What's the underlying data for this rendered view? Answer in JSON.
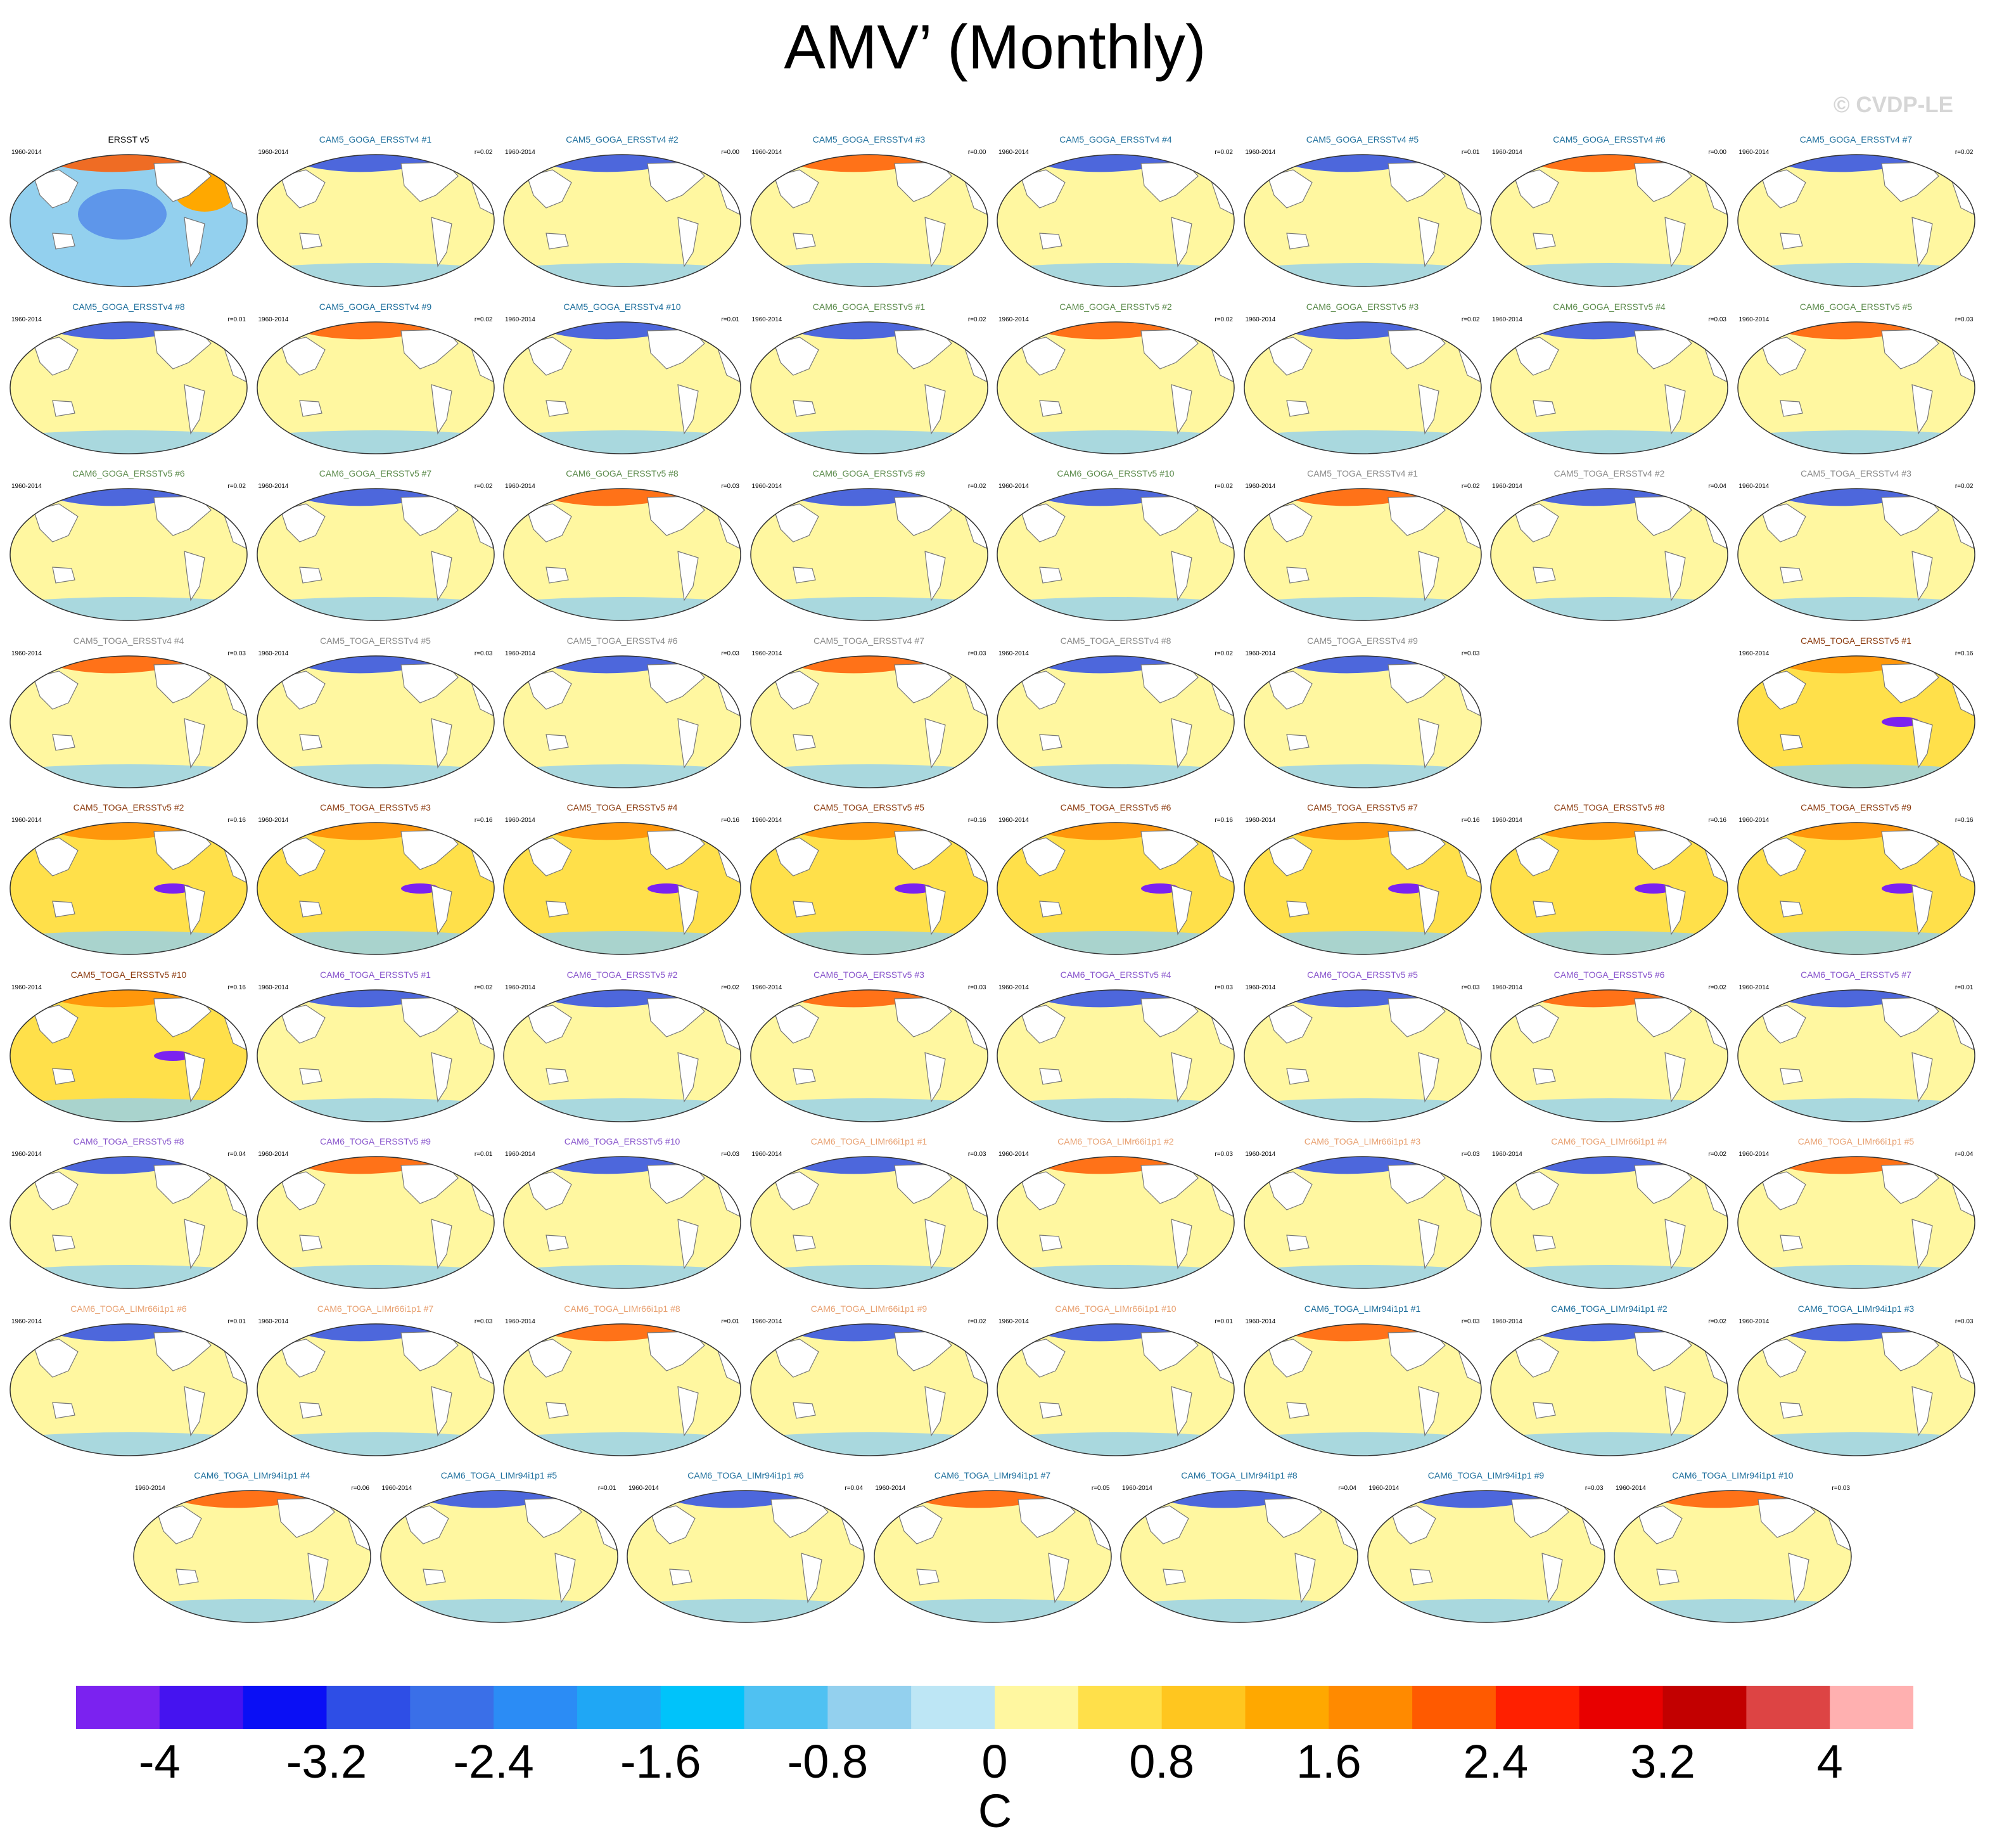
{
  "page": {
    "title": "AMV’ (Monthly)",
    "watermark": "© CVDP-LE"
  },
  "chart_data": {
    "type": "heatmap",
    "title": "AMV’ (Monthly)",
    "units": "C",
    "colorbar": {
      "ticks": [
        "-4",
        "-3.2",
        "-2.4",
        "-1.6",
        "-0.8",
        "0",
        "0.8",
        "1.6",
        "2.4",
        "3.2",
        "4"
      ],
      "range": [
        -4.4,
        4.4
      ],
      "colors": [
        "#7b22f0",
        "#4513f0",
        "#0a0ff5",
        "#2e4ee6",
        "#3a6fe8",
        "#2b8cf5",
        "#1fa7f5",
        "#00c3fa",
        "#4fc1f2",
        "#93d0ee",
        "#bde6f5",
        "#fff7a0",
        "#ffe04a",
        "#ffc61f",
        "#ffa800",
        "#ff8a00",
        "#ff5a00",
        "#ff2000",
        "#e80000",
        "#c20000",
        "#dd4444",
        "#ffb0b0"
      ]
    },
    "panels": [
      {
        "name": "ERSST v5",
        "years": "1960-2014",
        "r": "",
        "group": "obs"
      },
      {
        "name": "CAM5_GOGA_ERSSTv4 #1",
        "years": "1960-2014",
        "r": "r=0.02",
        "group": "cam5_goga"
      },
      {
        "name": "CAM5_GOGA_ERSSTv4 #2",
        "years": "1960-2014",
        "r": "r=0.00",
        "group": "cam5_goga"
      },
      {
        "name": "CAM5_GOGA_ERSSTv4 #3",
        "years": "1960-2014",
        "r": "r=0.00",
        "group": "cam5_goga"
      },
      {
        "name": "CAM5_GOGA_ERSSTv4 #4",
        "years": "1960-2014",
        "r": "r=0.02",
        "group": "cam5_goga"
      },
      {
        "name": "CAM5_GOGA_ERSSTv4 #5",
        "years": "1960-2014",
        "r": "r=0.01",
        "group": "cam5_goga"
      },
      {
        "name": "CAM5_GOGA_ERSSTv4 #6",
        "years": "1960-2014",
        "r": "r=0.00",
        "group": "cam5_goga"
      },
      {
        "name": "CAM5_GOGA_ERSSTv4 #7",
        "years": "1960-2014",
        "r": "r=0.02",
        "group": "cam5_goga"
      },
      {
        "name": "CAM5_GOGA_ERSSTv4 #8",
        "years": "1960-2014",
        "r": "r=0.01",
        "group": "cam5_goga"
      },
      {
        "name": "CAM5_GOGA_ERSSTv4 #9",
        "years": "1960-2014",
        "r": "r=0.02",
        "group": "cam5_goga"
      },
      {
        "name": "CAM5_GOGA_ERSSTv4 #10",
        "years": "1960-2014",
        "r": "r=0.01",
        "group": "cam5_goga"
      },
      {
        "name": "CAM6_GOGA_ERSSTv5 #1",
        "years": "1960-2014",
        "r": "r=0.02",
        "group": "cam6_goga"
      },
      {
        "name": "CAM6_GOGA_ERSSTv5 #2",
        "years": "1960-2014",
        "r": "r=0.02",
        "group": "cam6_goga"
      },
      {
        "name": "CAM6_GOGA_ERSSTv5 #3",
        "years": "1960-2014",
        "r": "r=0.02",
        "group": "cam6_goga"
      },
      {
        "name": "CAM6_GOGA_ERSSTv5 #4",
        "years": "1960-2014",
        "r": "r=0.03",
        "group": "cam6_goga"
      },
      {
        "name": "CAM6_GOGA_ERSSTv5 #5",
        "years": "1960-2014",
        "r": "r=0.03",
        "group": "cam6_goga"
      },
      {
        "name": "CAM6_GOGA_ERSSTv5 #6",
        "years": "1960-2014",
        "r": "r=0.02",
        "group": "cam6_goga"
      },
      {
        "name": "CAM6_GOGA_ERSSTv5 #7",
        "years": "1960-2014",
        "r": "r=0.02",
        "group": "cam6_goga"
      },
      {
        "name": "CAM6_GOGA_ERSSTv5 #8",
        "years": "1960-2014",
        "r": "r=0.03",
        "group": "cam6_goga"
      },
      {
        "name": "CAM6_GOGA_ERSSTv5 #9",
        "years": "1960-2014",
        "r": "r=0.02",
        "group": "cam6_goga"
      },
      {
        "name": "CAM6_GOGA_ERSSTv5 #10",
        "years": "1960-2014",
        "r": "r=0.02",
        "group": "cam6_goga"
      },
      {
        "name": "CAM5_TOGA_ERSSTv4 #1",
        "years": "1960-2014",
        "r": "r=0.02",
        "group": "cam5_toga4"
      },
      {
        "name": "CAM5_TOGA_ERSSTv4 #2",
        "years": "1960-2014",
        "r": "r=0.04",
        "group": "cam5_toga4"
      },
      {
        "name": "CAM5_TOGA_ERSSTv4 #3",
        "years": "1960-2014",
        "r": "r=0.02",
        "group": "cam5_toga4"
      },
      {
        "name": "CAM5_TOGA_ERSSTv4 #4",
        "years": "1960-2014",
        "r": "r=0.03",
        "group": "cam5_toga4"
      },
      {
        "name": "CAM5_TOGA_ERSSTv4 #5",
        "years": "1960-2014",
        "r": "r=0.03",
        "group": "cam5_toga4"
      },
      {
        "name": "CAM5_TOGA_ERSSTv4 #6",
        "years": "1960-2014",
        "r": "r=0.03",
        "group": "cam5_toga4"
      },
      {
        "name": "CAM5_TOGA_ERSSTv4 #7",
        "years": "1960-2014",
        "r": "r=0.03",
        "group": "cam5_toga4"
      },
      {
        "name": "CAM5_TOGA_ERSSTv4 #8",
        "years": "1960-2014",
        "r": "r=0.02",
        "group": "cam5_toga4"
      },
      {
        "name": "CAM5_TOGA_ERSSTv4 #9",
        "years": "1960-2014",
        "r": "r=0.03",
        "group": "cam5_toga4"
      },
      {
        "name": "CAM5_TOGA_ERSSTv5 #1",
        "years": "1960-2014",
        "r": "r=0.16",
        "group": "cam5_toga5"
      },
      {
        "name": "CAM5_TOGA_ERSSTv5 #2",
        "years": "1960-2014",
        "r": "r=0.16",
        "group": "cam5_toga5"
      },
      {
        "name": "CAM5_TOGA_ERSSTv5 #3",
        "years": "1960-2014",
        "r": "r=0.16",
        "group": "cam5_toga5"
      },
      {
        "name": "CAM5_TOGA_ERSSTv5 #4",
        "years": "1960-2014",
        "r": "r=0.16",
        "group": "cam5_toga5"
      },
      {
        "name": "CAM5_TOGA_ERSSTv5 #5",
        "years": "1960-2014",
        "r": "r=0.16",
        "group": "cam5_toga5"
      },
      {
        "name": "CAM5_TOGA_ERSSTv5 #6",
        "years": "1960-2014",
        "r": "r=0.16",
        "group": "cam5_toga5"
      },
      {
        "name": "CAM5_TOGA_ERSSTv5 #7",
        "years": "1960-2014",
        "r": "r=0.16",
        "group": "cam5_toga5"
      },
      {
        "name": "CAM5_TOGA_ERSSTv5 #8",
        "years": "1960-2014",
        "r": "r=0.16",
        "group": "cam5_toga5"
      },
      {
        "name": "CAM5_TOGA_ERSSTv5 #9",
        "years": "1960-2014",
        "r": "r=0.16",
        "group": "cam5_toga5"
      },
      {
        "name": "CAM5_TOGA_ERSSTv5 #10",
        "years": "1960-2014",
        "r": "r=0.16",
        "group": "cam5_toga5"
      },
      {
        "name": "CAM6_TOGA_ERSSTv5 #1",
        "years": "1960-2014",
        "r": "r=0.02",
        "group": "cam6_toga5"
      },
      {
        "name": "CAM6_TOGA_ERSSTv5 #2",
        "years": "1960-2014",
        "r": "r=0.02",
        "group": "cam6_toga5"
      },
      {
        "name": "CAM6_TOGA_ERSSTv5 #3",
        "years": "1960-2014",
        "r": "r=0.03",
        "group": "cam6_toga5"
      },
      {
        "name": "CAM6_TOGA_ERSSTv5 #4",
        "years": "1960-2014",
        "r": "r=0.03",
        "group": "cam6_toga5"
      },
      {
        "name": "CAM6_TOGA_ERSSTv5 #5",
        "years": "1960-2014",
        "r": "r=0.03",
        "group": "cam6_toga5"
      },
      {
        "name": "CAM6_TOGA_ERSSTv5 #6",
        "years": "1960-2014",
        "r": "r=0.02",
        "group": "cam6_toga5"
      },
      {
        "name": "CAM6_TOGA_ERSSTv5 #7",
        "years": "1960-2014",
        "r": "r=0.01",
        "group": "cam6_toga5"
      },
      {
        "name": "CAM6_TOGA_ERSSTv5 #8",
        "years": "1960-2014",
        "r": "r=0.04",
        "group": "cam6_toga5"
      },
      {
        "name": "CAM6_TOGA_ERSSTv5 #9",
        "years": "1960-2014",
        "r": "r=0.01",
        "group": "cam6_toga5"
      },
      {
        "name": "CAM6_TOGA_ERSSTv5 #10",
        "years": "1960-2014",
        "r": "r=0.03",
        "group": "cam6_toga5"
      },
      {
        "name": "CAM6_TOGA_LIMr66i1p1 #1",
        "years": "1960-2014",
        "r": "r=0.03",
        "group": "cam6_lim66"
      },
      {
        "name": "CAM6_TOGA_LIMr66i1p1 #2",
        "years": "1960-2014",
        "r": "r=0.03",
        "group": "cam6_lim66"
      },
      {
        "name": "CAM6_TOGA_LIMr66i1p1 #3",
        "years": "1960-2014",
        "r": "r=0.03",
        "group": "cam6_lim66"
      },
      {
        "name": "CAM6_TOGA_LIMr66i1p1 #4",
        "years": "1960-2014",
        "r": "r=0.02",
        "group": "cam6_lim66"
      },
      {
        "name": "CAM6_TOGA_LIMr66i1p1 #5",
        "years": "1960-2014",
        "r": "r=0.04",
        "group": "cam6_lim66"
      },
      {
        "name": "CAM6_TOGA_LIMr66i1p1 #6",
        "years": "1960-2014",
        "r": "r=0.01",
        "group": "cam6_lim66"
      },
      {
        "name": "CAM6_TOGA_LIMr66i1p1 #7",
        "years": "1960-2014",
        "r": "r=0.03",
        "group": "cam6_lim66"
      },
      {
        "name": "CAM6_TOGA_LIMr66i1p1 #8",
        "years": "1960-2014",
        "r": "r=0.01",
        "group": "cam6_lim66"
      },
      {
        "name": "CAM6_TOGA_LIMr66i1p1 #9",
        "years": "1960-2014",
        "r": "r=0.02",
        "group": "cam6_lim66"
      },
      {
        "name": "CAM6_TOGA_LIMr66i1p1 #10",
        "years": "1960-2014",
        "r": "r=0.01",
        "group": "cam6_lim66"
      },
      {
        "name": "CAM6_TOGA_LIMr94i1p1 #1",
        "years": "1960-2014",
        "r": "r=0.03",
        "group": "cam6_lim94"
      },
      {
        "name": "CAM6_TOGA_LIMr94i1p1 #2",
        "years": "1960-2014",
        "r": "r=0.02",
        "group": "cam6_lim94"
      },
      {
        "name": "CAM6_TOGA_LIMr94i1p1 #3",
        "years": "1960-2014",
        "r": "r=0.03",
        "group": "cam6_lim94"
      },
      {
        "name": "CAM6_TOGA_LIMr94i1p1 #4",
        "years": "1960-2014",
        "r": "r=0.06",
        "group": "cam6_lim94"
      },
      {
        "name": "CAM6_TOGA_LIMr94i1p1 #5",
        "years": "1960-2014",
        "r": "r=0.01",
        "group": "cam6_lim94"
      },
      {
        "name": "CAM6_TOGA_LIMr94i1p1 #6",
        "years": "1960-2014",
        "r": "r=0.04",
        "group": "cam6_lim94"
      },
      {
        "name": "CAM6_TOGA_LIMr94i1p1 #7",
        "years": "1960-2014",
        "r": "r=0.05",
        "group": "cam6_lim94"
      },
      {
        "name": "CAM6_TOGA_LIMr94i1p1 #8",
        "years": "1960-2014",
        "r": "r=0.04",
        "group": "cam6_lim94"
      },
      {
        "name": "CAM6_TOGA_LIMr94i1p1 #9",
        "years": "1960-2014",
        "r": "r=0.03",
        "group": "cam6_lim94"
      },
      {
        "name": "CAM6_TOGA_LIMr94i1p1 #10",
        "years": "1960-2014",
        "r": "r=0.03",
        "group": "cam6_lim94"
      }
    ],
    "group_colors": {
      "obs": "#000000",
      "cam5_goga": "#1c6e9c",
      "cam6_goga": "#5a8a4a",
      "cam5_toga4": "#8a8a8a",
      "cam5_toga5": "#8b3a0e",
      "cam6_toga5": "#8855cc",
      "cam6_lim66": "#e8a070",
      "cam6_lim94": "#1c6e9c"
    }
  }
}
